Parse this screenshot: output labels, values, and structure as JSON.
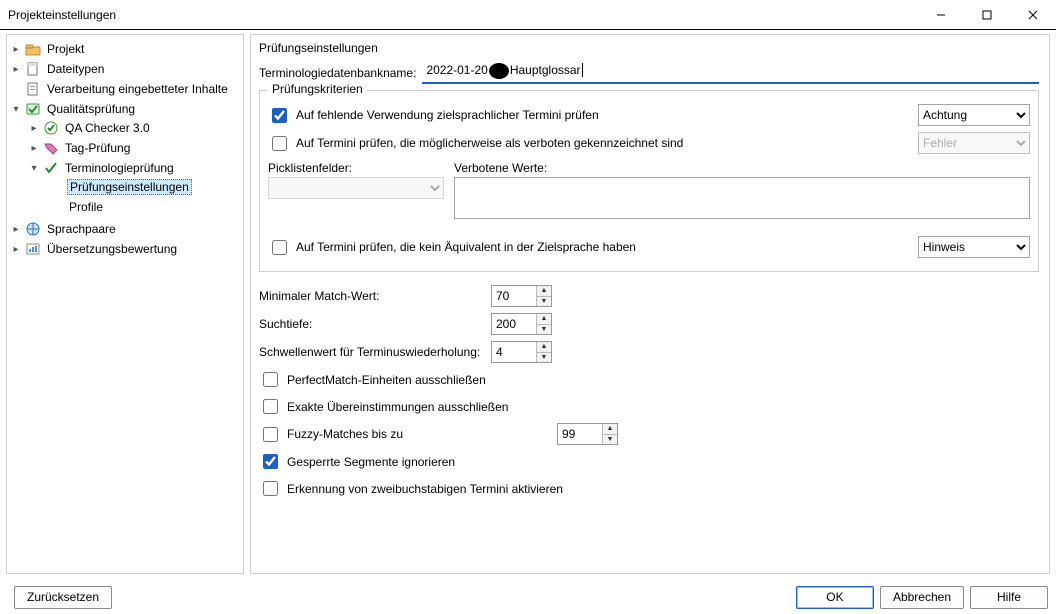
{
  "window": {
    "title": "Projekteinstellungen"
  },
  "tree": {
    "items": {
      "projekt": "Projekt",
      "dateitypen": "Dateitypen",
      "verarbeitung": "Verarbeitung eingebetteter Inhalte",
      "qa": "Qualitätsprüfung",
      "qa_checker": "QA Checker 3.0",
      "tag": "Tag-Prüfung",
      "term": "Terminologieprüfung",
      "pruef": "Prüfungseinstellungen",
      "profile": "Profile",
      "sprachpaare": "Sprachpaare",
      "bewertung": "Übersetzungsbewertung"
    }
  },
  "content": {
    "section_title": "Prüfungseinstellungen",
    "db_label": "Terminologiedatenbankname:",
    "db_value_pre": "2022-01-20",
    "db_value_post": "Hauptglossar",
    "criteria_legend": "Prüfungskriterien",
    "crit1": {
      "label": "Auf fehlende Verwendung zielsprachlicher Termini prüfen",
      "checked": true,
      "severity": "Achtung"
    },
    "crit2": {
      "label": "Auf Termini prüfen, die möglicherweise als verboten gekennzeichnet sind",
      "checked": false,
      "severity": "Fehler"
    },
    "picklist_label": "Picklistenfelder:",
    "forbidden_label": "Verbotene Werte:",
    "crit3": {
      "label": "Auf Termini prüfen, die kein Äquivalent in der Zielsprache haben",
      "checked": false,
      "severity": "Hinweis"
    },
    "min_match": {
      "label": "Minimaler Match-Wert:",
      "value": "70"
    },
    "depth": {
      "label": "Suchtiefe:",
      "value": "200"
    },
    "threshold": {
      "label": "Schwellenwert für Terminuswiederholung:",
      "value": "4"
    },
    "excl_perfect": {
      "label": "PerfectMatch-Einheiten ausschließen",
      "checked": false
    },
    "excl_exact": {
      "label": "Exakte Übereinstimmungen ausschließen",
      "checked": false
    },
    "fuzzy": {
      "label": "Fuzzy-Matches bis zu",
      "checked": false,
      "value": "99"
    },
    "ignore_locked": {
      "label": "Gesperrte Segmente ignorieren",
      "checked": true
    },
    "two_char": {
      "label": "Erkennung von zweibuchstabigen Termini aktivieren",
      "checked": false
    }
  },
  "footer": {
    "reset": "Zurücksetzen",
    "ok": "OK",
    "cancel": "Abbrechen",
    "help": "Hilfe"
  },
  "severity_options": [
    "Achtung",
    "Fehler",
    "Hinweis"
  ],
  "colors": {
    "accent": "#1e5fbf",
    "border": "#cfcfcf",
    "selection": "#cde8ff"
  }
}
